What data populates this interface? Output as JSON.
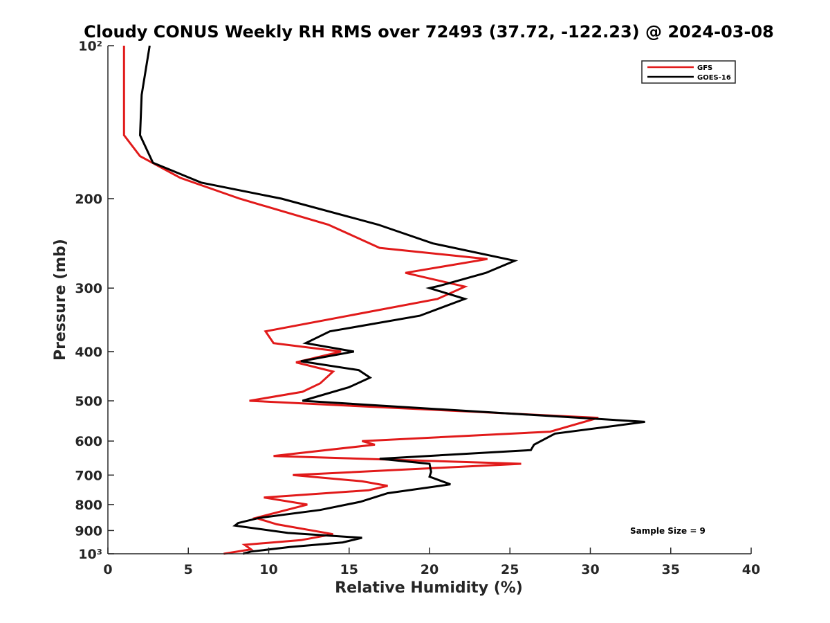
{
  "chart_data": {
    "type": "line",
    "title": "Cloudy CONUS Weekly RH RMS over 72493 (37.72, -122.23) @ 2024-03-08",
    "xlabel": "Relative Humidity (%)",
    "ylabel": "Pressure (mb)",
    "xlim": [
      0,
      40
    ],
    "ylim": [
      100,
      1000
    ],
    "y_scale": "log",
    "y_reversed": true,
    "x_ticks": [
      0,
      5,
      10,
      15,
      20,
      25,
      30,
      35,
      40
    ],
    "x_tick_labels": [
      "0",
      "5",
      "10",
      "15",
      "20",
      "25",
      "30",
      "35",
      "40"
    ],
    "y_ticks": [
      100,
      200,
      300,
      400,
      500,
      600,
      700,
      800,
      900,
      1000
    ],
    "y_tick_labels": [
      "10²",
      "200",
      "300",
      "400",
      "500",
      "600",
      "700",
      "800",
      "900",
      "10³"
    ],
    "grid": false,
    "legend_position": "top-right",
    "annotation": "Sample Size = 9",
    "series": [
      {
        "name": "GFS",
        "color": "#e11a1a",
        "points": [
          [
            1.0,
            100
          ],
          [
            1.0,
            125
          ],
          [
            1.0,
            150
          ],
          [
            2.0,
            165
          ],
          [
            4.5,
            182
          ],
          [
            8.2,
            200
          ],
          [
            13.7,
            225
          ],
          [
            16.9,
            250
          ],
          [
            23.6,
            263
          ],
          [
            18.5,
            280
          ],
          [
            22.2,
            298
          ],
          [
            20.5,
            315
          ],
          [
            9.8,
            365
          ],
          [
            10.3,
            385
          ],
          [
            14.5,
            400
          ],
          [
            11.7,
            420
          ],
          [
            14.0,
            438
          ],
          [
            13.2,
            462
          ],
          [
            12.1,
            480
          ],
          [
            8.8,
            500
          ],
          [
            30.5,
            540
          ],
          [
            27.5,
            575
          ],
          [
            15.8,
            600
          ],
          [
            16.6,
            610
          ],
          [
            10.3,
            642
          ],
          [
            25.7,
            665
          ],
          [
            11.5,
            700
          ],
          [
            15.8,
            720
          ],
          [
            17.4,
            735
          ],
          [
            16.2,
            750
          ],
          [
            9.7,
            775
          ],
          [
            12.4,
            800
          ],
          [
            9.2,
            850
          ],
          [
            10.5,
            875
          ],
          [
            14.0,
            915
          ],
          [
            12.0,
            940
          ],
          [
            8.5,
            960
          ],
          [
            8.9,
            980
          ],
          [
            7.2,
            1000
          ]
        ]
      },
      {
        "name": "GOES-16",
        "color": "#000000",
        "points": [
          [
            2.6,
            100
          ],
          [
            2.1,
            125
          ],
          [
            2.0,
            150
          ],
          [
            2.8,
            170
          ],
          [
            5.8,
            186
          ],
          [
            10.8,
            200
          ],
          [
            16.8,
            225
          ],
          [
            20.2,
            245
          ],
          [
            25.3,
            265
          ],
          [
            23.5,
            280
          ],
          [
            20.6,
            297
          ],
          [
            20.0,
            300
          ],
          [
            22.2,
            315
          ],
          [
            19.4,
            340
          ],
          [
            13.8,
            365
          ],
          [
            12.3,
            385
          ],
          [
            15.3,
            400
          ],
          [
            12.0,
            418
          ],
          [
            15.6,
            435
          ],
          [
            16.3,
            450
          ],
          [
            15.0,
            470
          ],
          [
            12.1,
            500
          ],
          [
            33.4,
            550
          ],
          [
            27.8,
            580
          ],
          [
            26.5,
            610
          ],
          [
            26.3,
            625
          ],
          [
            16.9,
            650
          ],
          [
            20.0,
            665
          ],
          [
            20.1,
            690
          ],
          [
            20.0,
            705
          ],
          [
            21.3,
            730
          ],
          [
            17.4,
            760
          ],
          [
            15.7,
            790
          ],
          [
            13.2,
            820
          ],
          [
            9.4,
            850
          ],
          [
            8.1,
            870
          ],
          [
            7.9,
            880
          ],
          [
            11.2,
            910
          ],
          [
            15.8,
            930
          ],
          [
            14.6,
            950
          ],
          [
            11.3,
            970
          ],
          [
            8.9,
            990
          ],
          [
            8.4,
            1000
          ]
        ]
      }
    ]
  }
}
